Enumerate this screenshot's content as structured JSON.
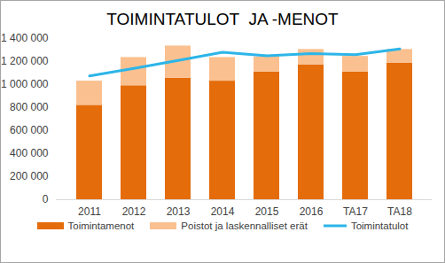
{
  "chart_data": {
    "type": "bar",
    "title": "TOIMINTATULOT  JA -MENOT",
    "categories": [
      "2011",
      "2012",
      "2013",
      "2014",
      "2015",
      "2016",
      "TA17",
      "TA18"
    ],
    "stacked": true,
    "series": [
      {
        "name": "Toimintamenot",
        "type": "bar",
        "color": "#E46C0A",
        "values": [
          820000,
          990000,
          1055000,
          1030000,
          1110000,
          1170000,
          1110000,
          1185000
        ]
      },
      {
        "name": "Poistot ja laskennalliset erät",
        "type": "bar",
        "color": "#FAC090",
        "values": [
          210000,
          245000,
          280000,
          205000,
          130000,
          135000,
          135000,
          120000
        ]
      },
      {
        "name": "Toimintatulot",
        "type": "line",
        "color": "#2CB5E8",
        "values": [
          1075000,
          1140000,
          1210000,
          1280000,
          1250000,
          1270000,
          1260000,
          1310000
        ]
      }
    ],
    "ylim": [
      0,
      1400000
    ],
    "yticks": [
      0,
      {
        "value": 200000,
        "label": "200 000"
      },
      {
        "value": 400000,
        "label": "400 000"
      },
      {
        "value": 600000,
        "label": "600 000"
      },
      {
        "value": 800000,
        "label": "800 000"
      },
      {
        "value": 1000000,
        "label": "1 000 000"
      },
      {
        "value": 1200000,
        "label": "1 200 000"
      },
      {
        "value": 1400000,
        "label": "1 400 000"
      }
    ],
    "grid": false,
    "legend": "bottom"
  }
}
